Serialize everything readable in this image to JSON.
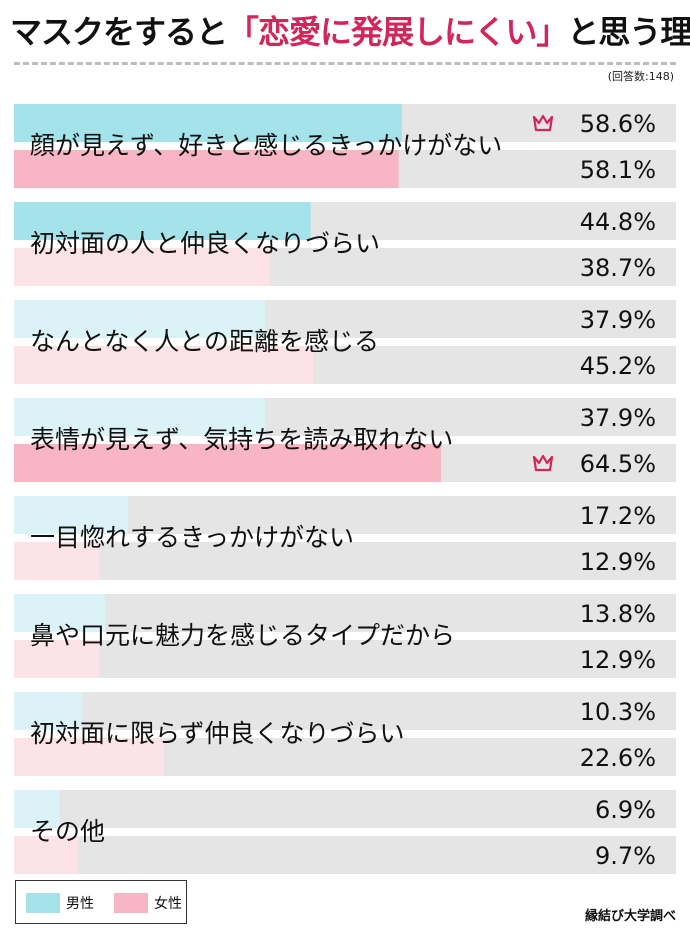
{
  "title": {
    "prefix": "マスクをすると",
    "highlight": "「恋愛に発展しにくい」",
    "suffix": "と思う理由"
  },
  "respondents": "(回答数:148)",
  "source": "縁結び大学調べ",
  "colors": {
    "male_main": "#a5e3ea",
    "male_light": "#dbf3f6",
    "female_main": "#f8b5c4",
    "female_light": "#fbe3e8",
    "track": "#e5e5e5",
    "crown": "#d2255a"
  },
  "chart_data": {
    "type": "bar",
    "orientation": "horizontal",
    "xlim": [
      0,
      100
    ],
    "unit": "%",
    "categories": [
      "顔が見えず、好きと感じるきっかけがない",
      "初対面の人と仲良くなりづらい",
      "なんとなく人との距離を感じる",
      "表情が見えず、気持ちを読み取れない",
      "一目惚れするきっかけがない",
      "鼻や口元に魅力を感じるタイプだから",
      "初対面に限らず仲良くなりづらい",
      "その他"
    ],
    "series": [
      {
        "name": "男性",
        "values": [
          58.6,
          44.8,
          37.9,
          37.9,
          17.2,
          13.8,
          10.3,
          6.9
        ],
        "labels": [
          "58.6%",
          "44.8%",
          "37.9%",
          "37.9%",
          "17.2%",
          "13.8%",
          "10.3%",
          "6.9%"
        ]
      },
      {
        "name": "女性",
        "values": [
          58.1,
          38.7,
          45.2,
          64.5,
          12.9,
          12.9,
          22.6,
          9.7
        ],
        "labels": [
          "58.1%",
          "38.7%",
          "45.2%",
          "64.5%",
          "12.9%",
          "12.9%",
          "22.6%",
          "9.7%"
        ]
      }
    ],
    "highlighted": [
      {
        "series": 0,
        "category": 0,
        "icon": "crown-icon"
      },
      {
        "series": 1,
        "category": 3,
        "icon": "crown-icon"
      }
    ],
    "legend": {
      "placement": "bottom-left",
      "entries": [
        "男性",
        "女性"
      ]
    }
  }
}
